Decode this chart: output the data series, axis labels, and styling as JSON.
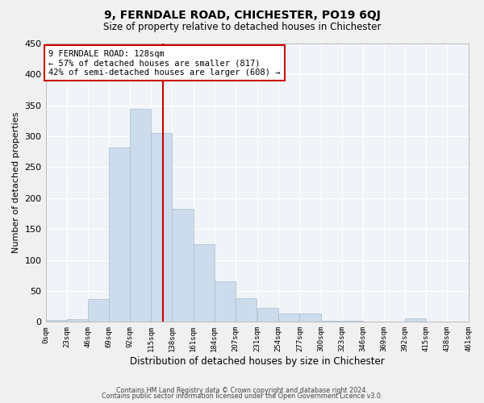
{
  "title": "9, FERNDALE ROAD, CHICHESTER, PO19 6QJ",
  "subtitle": "Size of property relative to detached houses in Chichester",
  "xlabel": "Distribution of detached houses by size in Chichester",
  "ylabel": "Number of detached properties",
  "bin_edges": [
    0,
    23,
    46,
    69,
    92,
    115,
    138,
    161,
    184,
    207,
    231,
    254,
    277,
    300,
    323,
    346,
    369,
    392,
    415,
    438,
    461
  ],
  "bar_heights": [
    3,
    4,
    37,
    282,
    345,
    305,
    183,
    125,
    65,
    38,
    22,
    14,
    13,
    2,
    2,
    1,
    0,
    5,
    1,
    1
  ],
  "bar_color": "#ccdcec",
  "bar_edge_color": "#aabccc",
  "property_size": 128,
  "vline_color": "#cc0000",
  "annotation_title": "9 FERNDALE ROAD: 128sqm",
  "annotation_line1": "← 57% of detached houses are smaller (817)",
  "annotation_line2": "42% of semi-detached houses are larger (608) →",
  "annotation_box_color": "#cc0000",
  "xlim": [
    0,
    461
  ],
  "ylim": [
    0,
    450
  ],
  "yticks": [
    0,
    50,
    100,
    150,
    200,
    250,
    300,
    350,
    400,
    450
  ],
  "xtick_labels": [
    "0sqm",
    "23sqm",
    "46sqm",
    "69sqm",
    "92sqm",
    "115sqm",
    "138sqm",
    "161sqm",
    "184sqm",
    "207sqm",
    "231sqm",
    "254sqm",
    "277sqm",
    "300sqm",
    "323sqm",
    "346sqm",
    "369sqm",
    "392sqm",
    "415sqm",
    "438sqm",
    "461sqm"
  ],
  "footer1": "Contains HM Land Registry data © Crown copyright and database right 2024.",
  "footer2": "Contains public sector information licensed under the Open Government Licence v3.0.",
  "bg_color": "#f0f0f0",
  "plot_bg_color": "#f0f4f8"
}
